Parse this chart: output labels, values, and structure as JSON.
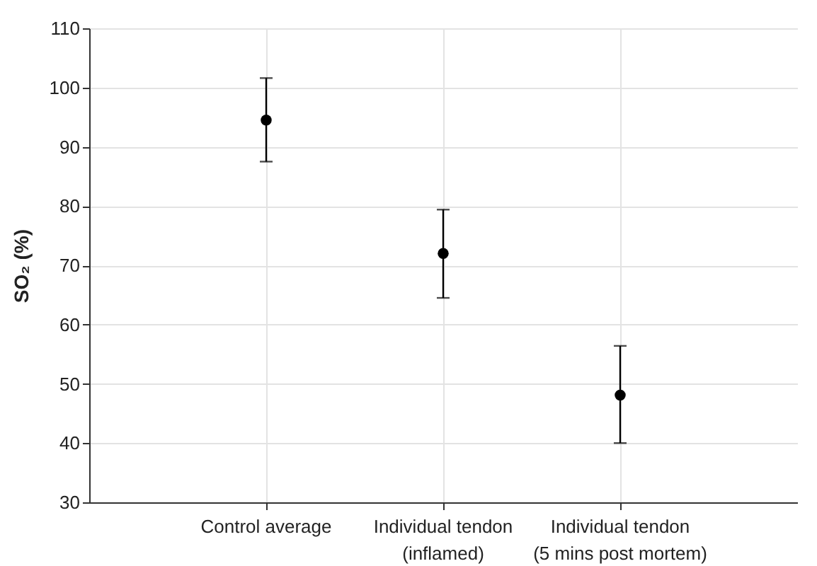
{
  "chart_data": {
    "type": "scatter",
    "ylabel": "SO₂ (%)",
    "categories": [
      "Control average",
      "Individual tendon\n(inflamed)",
      "Individual tendon\n(5 mins post mortem)"
    ],
    "values": [
      94.5,
      72,
      48.1
    ],
    "errors": [
      [
        87.5,
        101.6
      ],
      [
        64.5,
        79.4
      ],
      [
        40,
        56.4
      ]
    ],
    "color": "#000000",
    "marker": "circle",
    "ylim": [
      30,
      110
    ],
    "yticks": [
      30,
      40,
      50,
      60,
      70,
      80,
      90,
      100,
      110
    ],
    "grid": true
  }
}
